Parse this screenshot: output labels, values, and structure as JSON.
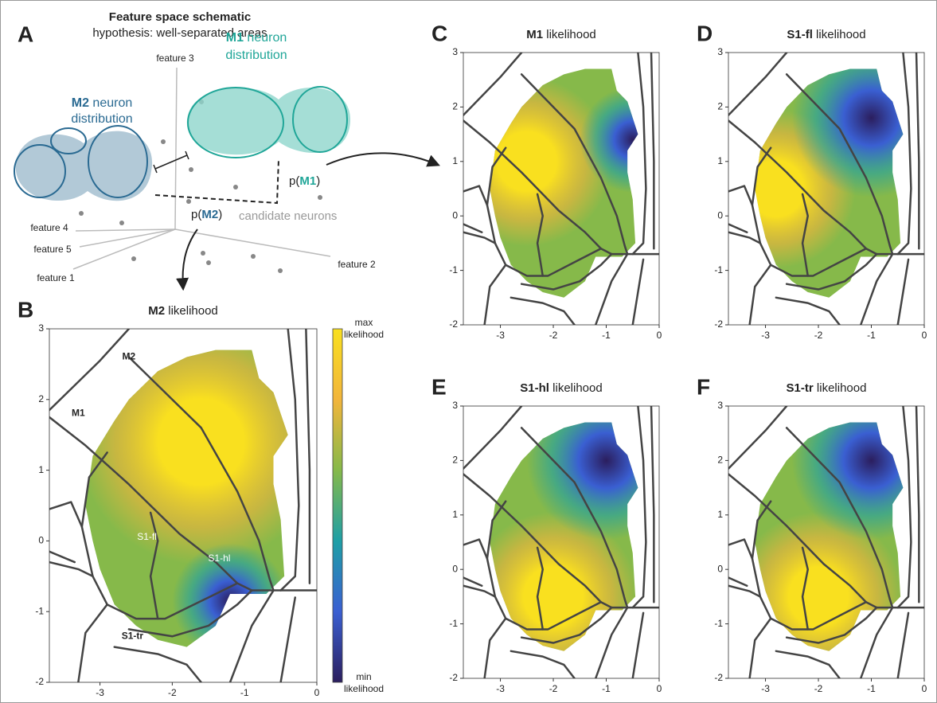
{
  "schematic": {
    "label": "A",
    "title": "Feature space schematic",
    "subtitle": "hypothesis: well-separated areas",
    "features": [
      "feature 3",
      "feature 4",
      "feature 5",
      "feature 1",
      "feature 2"
    ],
    "m1": {
      "area": "M1",
      "line1": " neuron",
      "line2": "distribution"
    },
    "m2": {
      "area": "M2",
      "line1": " neuron",
      "line2": "distribution"
    },
    "p_m1": {
      "pre": "p(",
      "area": "M1",
      "post": ")"
    },
    "p_m2": {
      "pre": "p(",
      "area": "M2",
      "post": ")"
    },
    "candidates": "candidate neurons"
  },
  "colorbar": {
    "max": [
      "max",
      "likelihood"
    ],
    "min": [
      "min",
      "likelihood"
    ],
    "colormap": [
      "#f9e01f",
      "#f2b53b",
      "#86b94a",
      "#1e9fa6",
      "#3a5fd2",
      "#2b1e5e"
    ]
  },
  "chart_data": [
    {
      "type": "heatmap",
      "label": "B",
      "title_area": "M2",
      "title_rest": " likelihood",
      "xlim": [
        -3.7,
        0
      ],
      "ylim": [
        -2,
        3
      ],
      "xticks": [
        -3,
        -2,
        -1,
        0
      ],
      "yticks": [
        -2,
        -1,
        0,
        1,
        2,
        3
      ],
      "regions": [
        "M2",
        "M1",
        "S1-fl",
        "S1-hl",
        "S1-tr"
      ]
    },
    {
      "type": "heatmap",
      "label": "C",
      "title_area": "M1",
      "title_rest": " likelihood",
      "xlim": [
        -3.7,
        0
      ],
      "ylim": [
        -2,
        3
      ],
      "xticks": [
        -3,
        -2,
        -1,
        0
      ],
      "yticks": [
        -2,
        -1,
        0,
        1,
        2,
        3
      ]
    },
    {
      "type": "heatmap",
      "label": "D",
      "title_area": "S1-fl",
      "title_rest": " likelihood",
      "xlim": [
        -3.7,
        0
      ],
      "ylim": [
        -2,
        3
      ],
      "xticks": [
        -3,
        -2,
        -1,
        0
      ],
      "yticks": [
        -2,
        -1,
        0,
        1,
        2,
        3
      ]
    },
    {
      "type": "heatmap",
      "label": "E",
      "title_area": "S1-hl",
      "title_rest": " likelihood",
      "xlim": [
        -3.7,
        0
      ],
      "ylim": [
        -2,
        3
      ],
      "xticks": [
        -3,
        -2,
        -1,
        0
      ],
      "yticks": [
        -2,
        -1,
        0,
        1,
        2,
        3
      ]
    },
    {
      "type": "heatmap",
      "label": "F",
      "title_area": "S1-tr",
      "title_rest": " likelihood",
      "xlim": [
        -3.7,
        0
      ],
      "ylim": [
        -2,
        3
      ],
      "xticks": [
        -3,
        -2,
        -1,
        0
      ],
      "yticks": [
        -2,
        -1,
        0,
        1,
        2,
        3
      ]
    }
  ]
}
